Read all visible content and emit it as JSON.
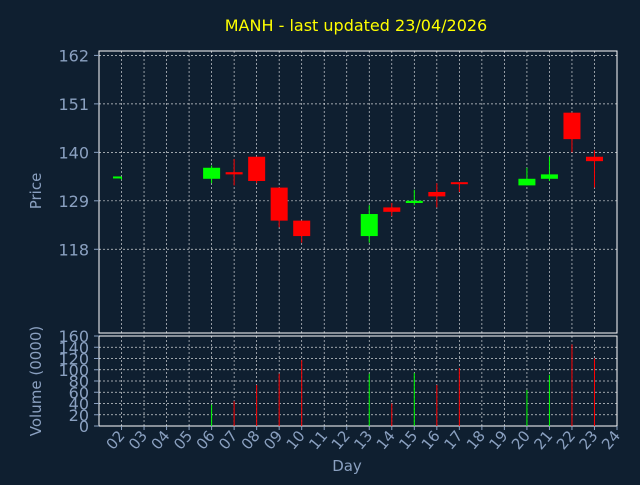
{
  "chart_data": [
    {
      "type": "candlestick",
      "title": "MANH - last updated 23/04/2026",
      "ylabel": "Price",
      "ylim": [
        99,
        163
      ],
      "yticks": [
        118,
        129,
        140,
        151,
        162
      ],
      "grid": true,
      "categories": [
        "02",
        "03",
        "04",
        "05",
        "06",
        "07",
        "08",
        "09",
        "10",
        "11",
        "12",
        "13",
        "14",
        "15",
        "16",
        "17",
        "18",
        "19",
        "20",
        "21",
        "22",
        "23",
        "24"
      ],
      "candles": [
        {
          "day": "02",
          "open": 134.0,
          "close": 134.3,
          "high": 134.4,
          "low": 133.8
        },
        {
          "day": "06",
          "open": 134.0,
          "close": 136.5,
          "high": 137.0,
          "low": 133.0
        },
        {
          "day": "07",
          "open": 135.5,
          "close": 135.0,
          "high": 138.5,
          "low": 132.5
        },
        {
          "day": "08",
          "open": 139.0,
          "close": 133.5,
          "high": 139.0,
          "low": 133.0
        },
        {
          "day": "09",
          "open": 132.0,
          "close": 124.5,
          "high": 132.0,
          "low": 123.0
        },
        {
          "day": "10",
          "open": 124.5,
          "close": 121.0,
          "high": 124.5,
          "low": 119.5
        },
        {
          "day": "13",
          "open": 121.0,
          "close": 126.0,
          "high": 128.0,
          "low": 119.5
        },
        {
          "day": "14",
          "open": 127.5,
          "close": 126.5,
          "high": 128.5,
          "low": 125.5
        },
        {
          "day": "15",
          "open": 128.5,
          "close": 129.0,
          "high": 131.5,
          "low": 128.0
        },
        {
          "day": "16",
          "open": 131.0,
          "close": 130.0,
          "high": 133.0,
          "low": 127.5
        },
        {
          "day": "17",
          "open": 133.0,
          "close": 132.7,
          "high": 133.0,
          "low": 131.0
        },
        {
          "day": "20",
          "open": 132.5,
          "close": 134.0,
          "high": 136.5,
          "low": 132.5
        },
        {
          "day": "21",
          "open": 134.0,
          "close": 135.0,
          "high": 139.0,
          "low": 133.5
        },
        {
          "day": "22",
          "open": 149.0,
          "close": 143.0,
          "high": 149.0,
          "low": 140.0
        },
        {
          "day": "23",
          "open": 139.0,
          "close": 138.0,
          "high": 140.5,
          "low": 132.0
        }
      ],
      "colors": {
        "up": "#00ff00",
        "down": "#ff0000",
        "background": "#0f1f30",
        "title": "#ffff00",
        "axis_text": "#8aa0c0",
        "grid": "#ffffff"
      }
    },
    {
      "type": "bar",
      "ylabel": "Volume (0000)",
      "xlabel": "Day",
      "ylim": [
        0,
        160
      ],
      "yticks": [
        0,
        20,
        40,
        60,
        80,
        100,
        120,
        140,
        160
      ],
      "categories": [
        "02",
        "03",
        "04",
        "05",
        "06",
        "07",
        "08",
        "09",
        "10",
        "11",
        "12",
        "13",
        "14",
        "15",
        "16",
        "17",
        "18",
        "19",
        "20",
        "21",
        "22",
        "23",
        "24"
      ],
      "bars": [
        {
          "day": "06",
          "value": 38,
          "direction": "up"
        },
        {
          "day": "07",
          "value": 44,
          "direction": "down"
        },
        {
          "day": "08",
          "value": 73,
          "direction": "down"
        },
        {
          "day": "09",
          "value": 93,
          "direction": "down"
        },
        {
          "day": "10",
          "value": 117,
          "direction": "down"
        },
        {
          "day": "13",
          "value": 93,
          "direction": "up"
        },
        {
          "day": "14",
          "value": 40,
          "direction": "down"
        },
        {
          "day": "15",
          "value": 94,
          "direction": "up"
        },
        {
          "day": "16",
          "value": 73,
          "direction": "down"
        },
        {
          "day": "17",
          "value": 103,
          "direction": "down"
        },
        {
          "day": "20",
          "value": 64,
          "direction": "up"
        },
        {
          "day": "21",
          "value": 91,
          "direction": "up"
        },
        {
          "day": "22",
          "value": 145,
          "direction": "down"
        },
        {
          "day": "23",
          "value": 120,
          "direction": "down"
        }
      ]
    }
  ]
}
